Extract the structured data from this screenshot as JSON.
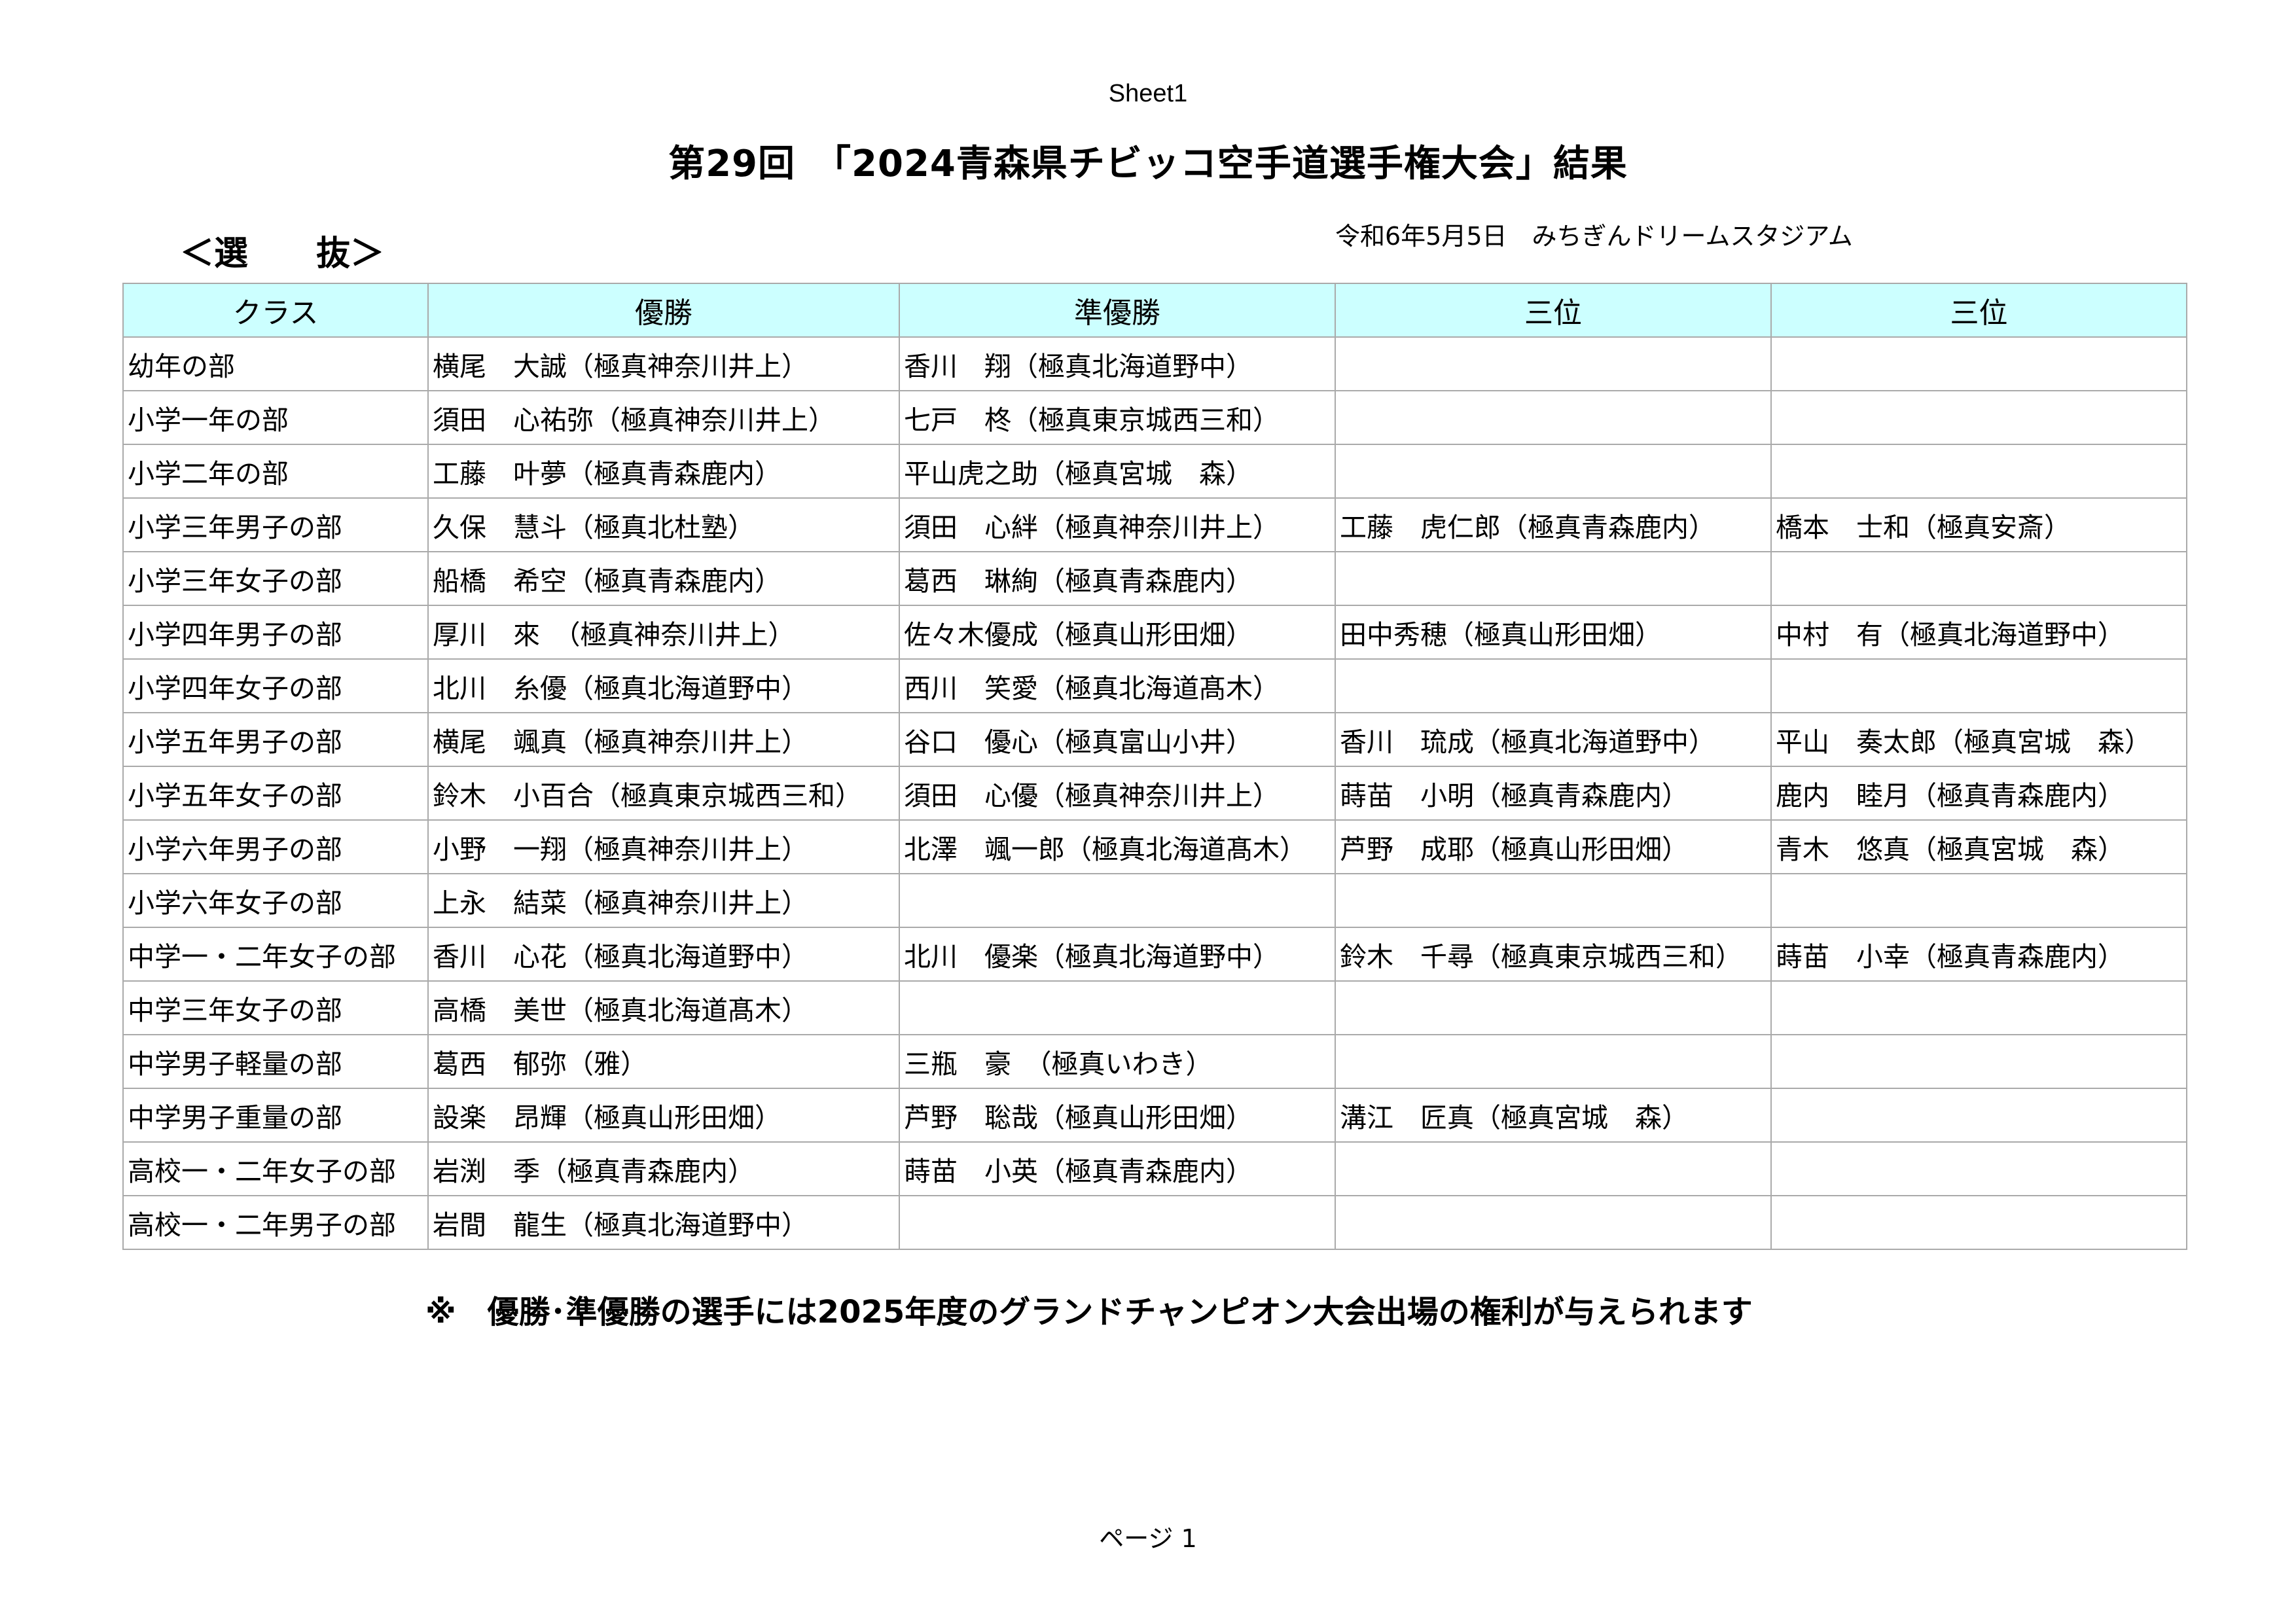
{
  "sheet_name": "Sheet1",
  "title": "第29回　「2024青森県チビッコ空手道選手権大会」結果",
  "section": "＜選　　抜＞",
  "date_location": "令和6年5月5日　みちぎんドリームスタジアム",
  "table": {
    "headers": [
      "クラス",
      "優勝",
      "準優勝",
      "三位",
      "三位"
    ],
    "rows": [
      [
        "幼年の部",
        "横尾　大誠（極真神奈川井上）",
        "香川　翔（極真北海道野中）",
        "",
        ""
      ],
      [
        "小学一年の部",
        "須田　心祐弥（極真神奈川井上）",
        "七戸　柊（極真東京城西三和）",
        "",
        ""
      ],
      [
        "小学二年の部",
        "工藤　叶夢（極真青森鹿内）",
        "平山虎之助（極真宮城　森）",
        "",
        ""
      ],
      [
        "小学三年男子の部",
        "久保　慧斗（極真北杜塾）",
        "須田　心絆（極真神奈川井上）",
        "工藤　虎仁郎（極真青森鹿内）",
        "橋本　士和（極真安斎）"
      ],
      [
        "小学三年女子の部",
        "船橋　希空（極真青森鹿内）",
        "葛西　琳絢（極真青森鹿内）",
        "",
        ""
      ],
      [
        "小学四年男子の部",
        "厚川　來　（極真神奈川井上）",
        "佐々木優成（極真山形田畑）",
        "田中秀穂（極真山形田畑）",
        "中村　有（極真北海道野中）"
      ],
      [
        "小学四年女子の部",
        "北川　糸優（極真北海道野中）",
        "西川　笑愛（極真北海道髙木）",
        "",
        ""
      ],
      [
        "小学五年男子の部",
        "横尾　颯真（極真神奈川井上）",
        "谷口　優心（極真富山小井）",
        "香川　琉成（極真北海道野中）",
        "平山　奏太郎（極真宮城　森）"
      ],
      [
        "小学五年女子の部",
        "鈴木　小百合（極真東京城西三和）",
        "須田　心優（極真神奈川井上）",
        "蒔苗　小明（極真青森鹿内）",
        "鹿内　睦月（極真青森鹿内）"
      ],
      [
        "小学六年男子の部",
        "小野　一翔（極真神奈川井上）",
        "北澤　颯一郎（極真北海道髙木）",
        "芦野　成耶（極真山形田畑）",
        "青木　悠真（極真宮城　森）"
      ],
      [
        "小学六年女子の部",
        "上永　結菜（極真神奈川井上）",
        "",
        "",
        ""
      ],
      [
        "中学一・二年女子の部",
        "香川　心花（極真北海道野中）",
        "北川　優楽（極真北海道野中）",
        "鈴木　千尋（極真東京城西三和）",
        "蒔苗　小幸（極真青森鹿内）"
      ],
      [
        "中学三年女子の部",
        "高橋　美世（極真北海道髙木）",
        "",
        "",
        ""
      ],
      [
        "中学男子軽量の部",
        "葛西　郁弥（雅）",
        "三瓶　豪　（極真いわき）",
        "",
        ""
      ],
      [
        "中学男子重量の部",
        "設楽　昂輝（極真山形田畑）",
        "芦野　聡哉（極真山形田畑）",
        "溝江　匠真（極真宮城　森）",
        ""
      ],
      [
        "高校一・二年女子の部",
        "岩渕　季（極真青森鹿内）",
        "蒔苗　小英（極真青森鹿内）",
        "",
        ""
      ],
      [
        "高校一・二年男子の部",
        "岩間　龍生（極真北海道野中）",
        "",
        "",
        ""
      ]
    ]
  },
  "note": "※　優勝･準優勝の選手には2025年度のグランドチャンピオン大会出場の権利が与えられます",
  "page_label": "ページ 1",
  "colors": {
    "header_bg": "#ccffff",
    "grid": "#aaaaaa"
  }
}
